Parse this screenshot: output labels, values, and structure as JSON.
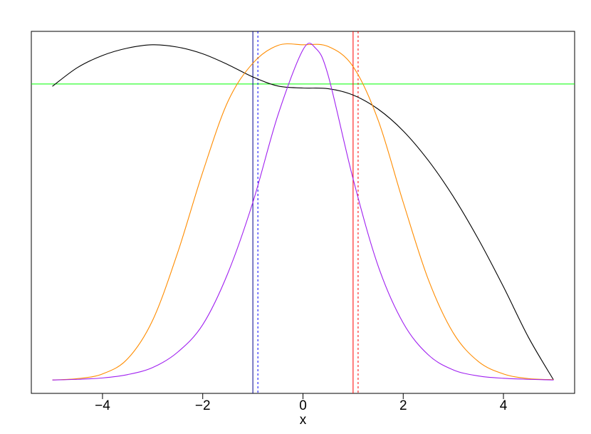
{
  "chart_data": {
    "type": "line",
    "title": "",
    "xlabel": "x",
    "ylabel": "",
    "xlim": [
      -5.42,
      5.42
    ],
    "ylim": [
      -0.04,
      1.04
    ],
    "x_ticks": [
      -4,
      -2,
      0,
      2,
      4
    ],
    "x_tick_labels": [
      "−4",
      "−2",
      "0",
      "2",
      "4"
    ],
    "y_axis_labels_shown": false,
    "grid": false,
    "legend": "none",
    "series": [
      {
        "color": "#000000",
        "style": "solid",
        "x": [
          -5.0,
          -4.5,
          -4.0,
          -3.5,
          -3.0,
          -2.5,
          -2.0,
          -1.5,
          -1.0,
          -0.5,
          0.0,
          0.5,
          1.0,
          1.5,
          2.0,
          2.5,
          3.0,
          3.5,
          4.0,
          4.5,
          5.0
        ],
        "y": [
          0.876,
          0.932,
          0.968,
          0.99,
          1.0,
          0.993,
          0.973,
          0.941,
          0.904,
          0.877,
          0.871,
          0.869,
          0.85,
          0.808,
          0.743,
          0.655,
          0.547,
          0.42,
          0.278,
          0.127,
          0.0
        ]
      },
      {
        "color": "#ff8c00",
        "style": "solid",
        "x": [
          -5.0,
          -4.5,
          -4.0,
          -3.5,
          -3.0,
          -2.5,
          -2.0,
          -1.5,
          -1.0,
          -0.5,
          0.0,
          0.5,
          1.0,
          1.5,
          2.0,
          2.5,
          3.0,
          3.5,
          4.0,
          4.5,
          5.0
        ],
        "y": [
          0.0,
          0.004,
          0.018,
          0.063,
          0.178,
          0.38,
          0.62,
          0.83,
          0.945,
          0.998,
          1.0,
          0.995,
          0.935,
          0.775,
          0.53,
          0.3,
          0.14,
          0.055,
          0.018,
          0.004,
          0.001
        ]
      },
      {
        "color": "#a020f0",
        "style": "solid",
        "x": [
          -5.0,
          -4.5,
          -4.0,
          -3.5,
          -3.0,
          -2.5,
          -2.0,
          -1.5,
          -1.0,
          -0.5,
          0.0,
          0.25,
          0.5,
          1.0,
          1.5,
          2.0,
          2.5,
          3.0,
          3.5,
          4.0,
          4.5,
          5.0
        ],
        "y": [
          0.0,
          0.002,
          0.006,
          0.016,
          0.037,
          0.083,
          0.165,
          0.318,
          0.53,
          0.79,
          0.985,
          0.99,
          0.91,
          0.6,
          0.34,
          0.17,
          0.075,
          0.03,
          0.012,
          0.005,
          0.002,
          0.0
        ]
      }
    ],
    "reference_lines": [
      {
        "orientation": "horizontal",
        "value": 0.883,
        "color": "#00ff00",
        "style": "solid"
      },
      {
        "orientation": "vertical",
        "value": -1.0,
        "color": "#00008b",
        "style": "solid"
      },
      {
        "orientation": "vertical",
        "value": -0.9,
        "color": "#0000ff",
        "style": "dashed"
      },
      {
        "orientation": "vertical",
        "value": 1.0,
        "color": "#ff0000",
        "style": "solid"
      },
      {
        "orientation": "vertical",
        "value": 1.1,
        "color": "#ff0000",
        "style": "dashed"
      }
    ]
  }
}
